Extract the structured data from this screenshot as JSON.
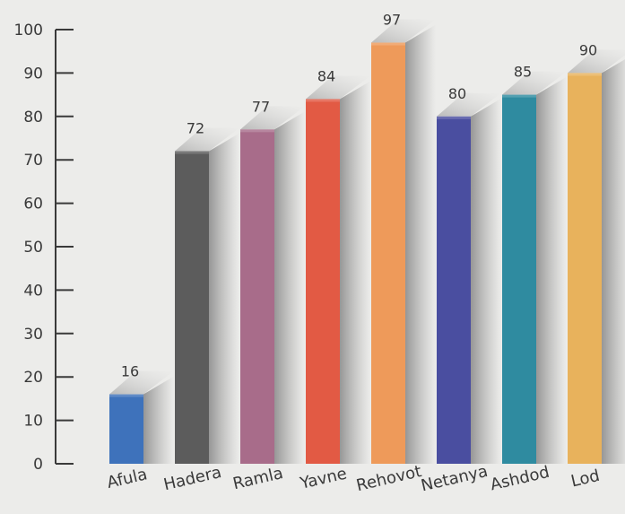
{
  "chart_data": {
    "type": "bar",
    "title": "",
    "xlabel": "",
    "ylabel": "",
    "categories": [
      "Afula",
      "Hadera",
      "Ramla",
      "Yavne",
      "Rehovot",
      "Netanya",
      "Ashdod",
      "Lod"
    ],
    "values": [
      16,
      72,
      77,
      84,
      97,
      80,
      85,
      90
    ],
    "colors": [
      "#3e72bb",
      "#5c5c5c",
      "#a86c8a",
      "#e25a44",
      "#ee9a5a",
      "#4a4ea0",
      "#2f8ba0",
      "#e8b25c"
    ],
    "ylim": [
      0,
      100
    ],
    "yticks": [
      0,
      10,
      20,
      30,
      40,
      50,
      60,
      70,
      80,
      90,
      100
    ],
    "grid": false,
    "legend": "none",
    "style": "3d-shadow"
  }
}
